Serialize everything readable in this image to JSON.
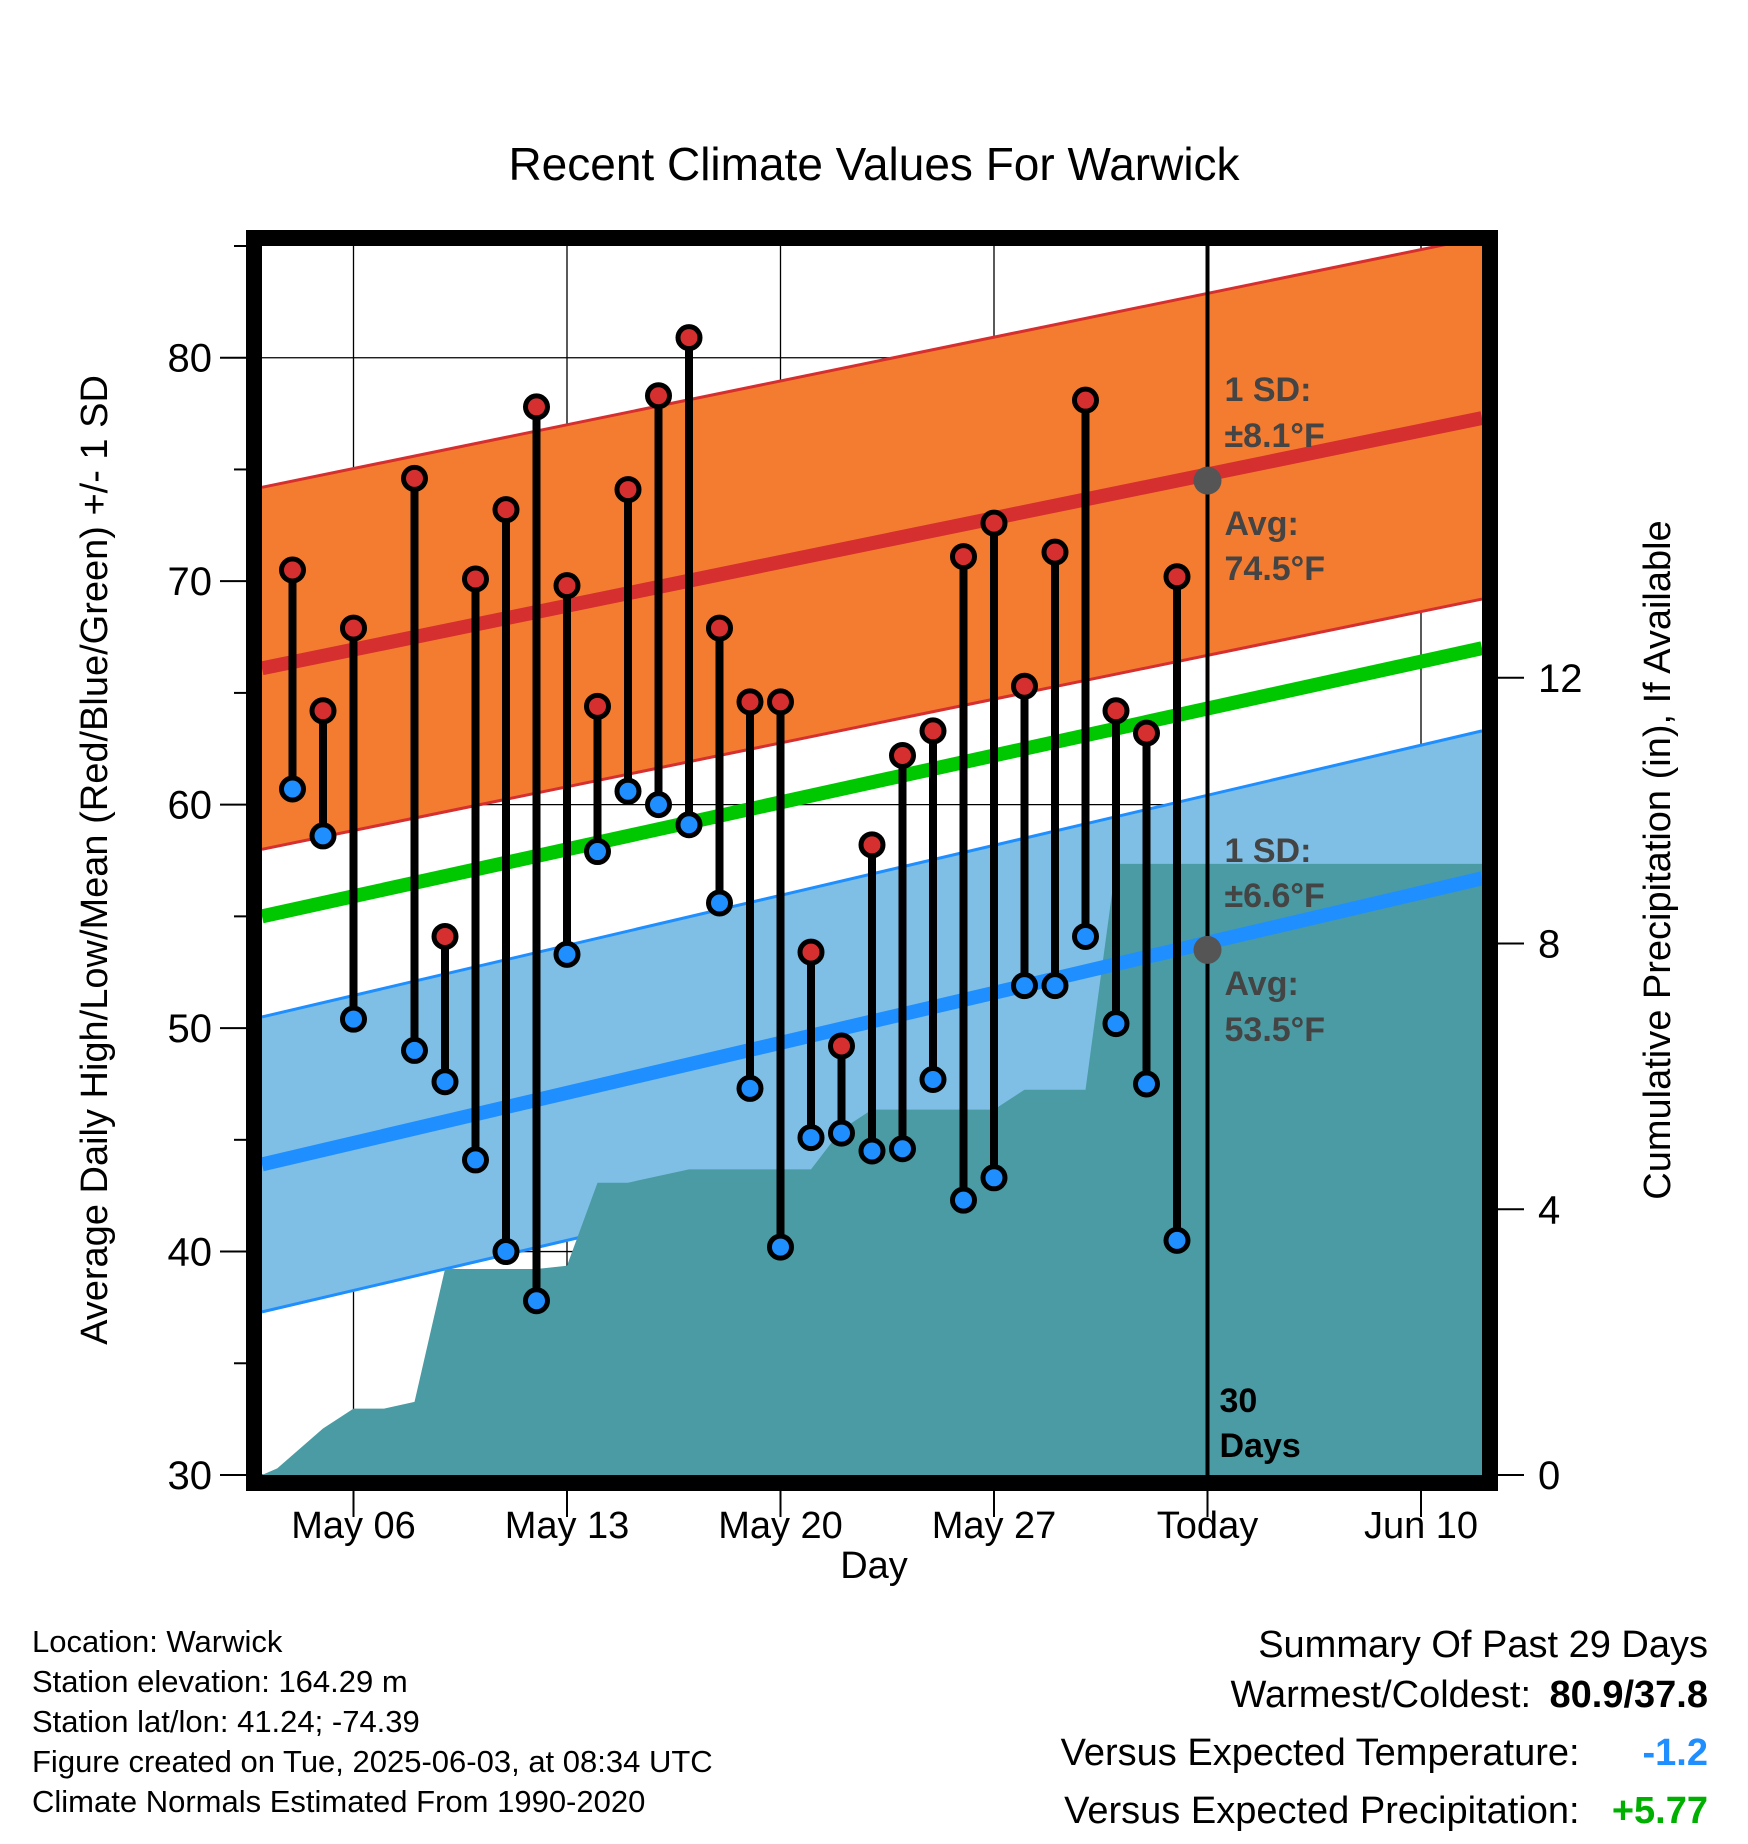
{
  "title": "Recent Climate Values For Warwick",
  "xlabel": "Day",
  "ylabel_left": "Average Daily High/Low/Mean (Red/Blue/Green) +/- 1 SD",
  "ylabel_right": "Cumulative Precipitation (in), If Available",
  "colors": {
    "high_band": "#f47c30",
    "high_line": "#d62f2f",
    "low_band": "#7fbfe6",
    "low_line": "#1f8fff",
    "mean_line": "#00c800",
    "precip": "#4a9ba3",
    "text_gray": "#444444",
    "versus_temp": "#1f8fff",
    "versus_precip": "#00b000"
  },
  "annotations": {
    "high_sd_label": "1 SD:",
    "high_sd_value": "±8.1°F",
    "high_avg_label": "Avg:",
    "high_avg_value": "74.5°F",
    "low_sd_label": "1 SD:",
    "low_sd_value": "±6.6°F",
    "low_avg_label": "Avg:",
    "low_avg_value": "53.5°F",
    "days_label": "30",
    "days_label2": "Days"
  },
  "footer": {
    "location": "Location: Warwick",
    "elevation": "Station elevation: 164.29 m",
    "latlon": "Station lat/lon: 41.24; -74.39",
    "created": "Figure created on Tue, 2025-06-03, at 08:34 UTC",
    "normals": "Climate Normals Estimated From 1990-2020"
  },
  "summary": {
    "title": "Summary Of Past 29 Days",
    "warmest_label": "Warmest/Coldest:",
    "warmest_value": "80.9/37.8",
    "temp_label": "Versus Expected Temperature:",
    "temp_value": "-1.2",
    "precip_label": "Versus Expected Precipitation:",
    "precip_value": "+5.77"
  },
  "chart_data": {
    "type": "line",
    "x_range": [
      "2025-05-03",
      "2025-06-12"
    ],
    "today": "2025-06-03",
    "x_ticks": [
      {
        "date": "2025-05-06",
        "label": "May 06"
      },
      {
        "date": "2025-05-13",
        "label": "May 13"
      },
      {
        "date": "2025-05-20",
        "label": "May 20"
      },
      {
        "date": "2025-05-27",
        "label": "May 27"
      },
      {
        "date": "2025-06-03",
        "label": "Today"
      },
      {
        "date": "2025-06-10",
        "label": "Jun 10"
      }
    ],
    "ylim_left": [
      30,
      85
    ],
    "y_ticks_left": [
      30,
      40,
      50,
      60,
      70,
      80
    ],
    "ylim_right": [
      0,
      18.5
    ],
    "y_ticks_right": [
      0,
      4,
      8,
      12
    ],
    "normals": {
      "start_date": "2025-05-03",
      "end_date": "2025-06-12",
      "high_avg": [
        66.1,
        77.3
      ],
      "high_sd": 8.1,
      "low_avg": [
        43.9,
        56.7
      ],
      "low_sd": 6.6,
      "mean_avg": [
        55.0,
        67.0
      ],
      "today_high_avg": 74.5,
      "today_low_avg": 53.5
    },
    "daily": [
      {
        "date": "2025-05-04",
        "high": 70.5,
        "low": 60.7
      },
      {
        "date": "2025-05-05",
        "high": 64.2,
        "low": 58.6
      },
      {
        "date": "2025-05-06",
        "high": 67.9,
        "low": 50.4
      },
      {
        "date": "2025-05-08",
        "high": 74.6,
        "low": 49.0
      },
      {
        "date": "2025-05-09",
        "high": 54.1,
        "low": 47.6
      },
      {
        "date": "2025-05-10",
        "high": 70.1,
        "low": 44.1
      },
      {
        "date": "2025-05-11",
        "high": 73.2,
        "low": 40.0
      },
      {
        "date": "2025-05-12",
        "high": 77.8,
        "low": 37.8
      },
      {
        "date": "2025-05-13",
        "high": 69.8,
        "low": 53.3
      },
      {
        "date": "2025-05-14",
        "high": 64.4,
        "low": 57.9
      },
      {
        "date": "2025-05-15",
        "high": 74.1,
        "low": 60.6
      },
      {
        "date": "2025-05-16",
        "high": 78.3,
        "low": 60.0
      },
      {
        "date": "2025-05-17",
        "high": 80.9,
        "low": 59.1
      },
      {
        "date": "2025-05-18",
        "high": 67.9,
        "low": 55.6
      },
      {
        "date": "2025-05-19",
        "high": 64.6,
        "low": 47.3
      },
      {
        "date": "2025-05-20",
        "high": 64.6,
        "low": 40.2
      },
      {
        "date": "2025-05-21",
        "high": 53.4,
        "low": 45.1
      },
      {
        "date": "2025-05-22",
        "high": 49.2,
        "low": 45.3
      },
      {
        "date": "2025-05-23",
        "high": 58.2,
        "low": 44.5
      },
      {
        "date": "2025-05-24",
        "high": 62.2,
        "low": 44.6
      },
      {
        "date": "2025-05-25",
        "high": 63.3,
        "low": 47.7
      },
      {
        "date": "2025-05-26",
        "high": 71.1,
        "low": 42.3
      },
      {
        "date": "2025-05-27",
        "high": 72.6,
        "low": 43.3
      },
      {
        "date": "2025-05-28",
        "high": 65.3,
        "low": 51.9
      },
      {
        "date": "2025-05-29",
        "high": 71.3,
        "low": 51.9
      },
      {
        "date": "2025-05-30",
        "high": 78.1,
        "low": 54.1
      },
      {
        "date": "2025-05-31",
        "high": 64.2,
        "low": 50.2
      },
      {
        "date": "2025-06-01",
        "high": 63.2,
        "low": 47.5
      },
      {
        "date": "2025-06-02",
        "high": 70.2,
        "low": 40.5
      }
    ],
    "precip_cumulative": [
      {
        "date": "2025-05-03",
        "value": 0
      },
      {
        "date": "2025-05-03.5",
        "value": 0.1
      },
      {
        "date": "2025-05-05",
        "value": 0.7
      },
      {
        "date": "2025-05-06",
        "value": 1.0
      },
      {
        "date": "2025-05-07",
        "value": 1.0
      },
      {
        "date": "2025-05-08",
        "value": 1.1
      },
      {
        "date": "2025-05-09",
        "value": 3.1
      },
      {
        "date": "2025-05-12",
        "value": 3.1
      },
      {
        "date": "2025-05-13",
        "value": 3.15
      },
      {
        "date": "2025-05-14",
        "value": 4.4
      },
      {
        "date": "2025-05-15",
        "value": 4.4
      },
      {
        "date": "2025-05-16",
        "value": 4.5
      },
      {
        "date": "2025-05-17",
        "value": 4.6
      },
      {
        "date": "2025-05-21",
        "value": 4.6
      },
      {
        "date": "2025-05-22",
        "value": 5.2
      },
      {
        "date": "2025-05-23",
        "value": 5.5
      },
      {
        "date": "2025-05-27",
        "value": 5.5
      },
      {
        "date": "2025-05-28",
        "value": 5.8
      },
      {
        "date": "2025-05-30",
        "value": 5.8
      },
      {
        "date": "2025-05-31",
        "value": 9.2
      },
      {
        "date": "2025-06-12",
        "value": 9.2
      }
    ]
  }
}
